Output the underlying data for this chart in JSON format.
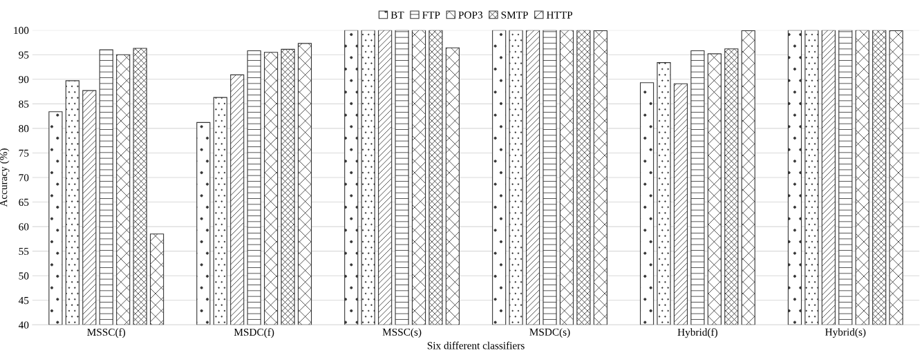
{
  "chart_data": {
    "type": "bar",
    "xlabel": "Six different classifiers",
    "ylabel": "Accuracy (%)",
    "categories": [
      "MSSC(f)",
      "MSDC(f)",
      "MSSC(s)",
      "MSDC(s)",
      "Hybrid(f)",
      "Hybrid(s)"
    ],
    "series": [
      {
        "name": "BT",
        "color": "#333333",
        "values": [
          83.4,
          81.2,
          100,
          100,
          89.3,
          100
        ]
      },
      {
        "color": "#333333",
        "values": [
          89.7,
          86.3,
          100,
          100,
          93.4,
          100
        ]
      },
      {
        "color": "#333333",
        "values": [
          87.7,
          90.9,
          100,
          100,
          89.1,
          100
        ]
      },
      {
        "name": "FTP",
        "color": "#333333",
        "values": [
          96.0,
          95.8,
          100,
          100,
          95.8,
          100
        ]
      },
      {
        "name": "POP3",
        "color": "#333333",
        "values": [
          95.0,
          95.5,
          100,
          100,
          95.2,
          100
        ]
      },
      {
        "name": "SMTP",
        "color": "#333333",
        "values": [
          96.3,
          96.1,
          100,
          100,
          96.2,
          100
        ]
      },
      {
        "name": "HTTP",
        "color": "#333333",
        "values": [
          58.5,
          97.3,
          96.4,
          99.9,
          99.9,
          99.9
        ]
      }
    ],
    "ylim": [
      40,
      100
    ],
    "yticks": [
      40,
      45,
      50,
      55,
      60,
      65,
      70,
      75,
      80,
      85,
      90,
      95,
      100
    ],
    "grid": "y",
    "legend": "top"
  }
}
